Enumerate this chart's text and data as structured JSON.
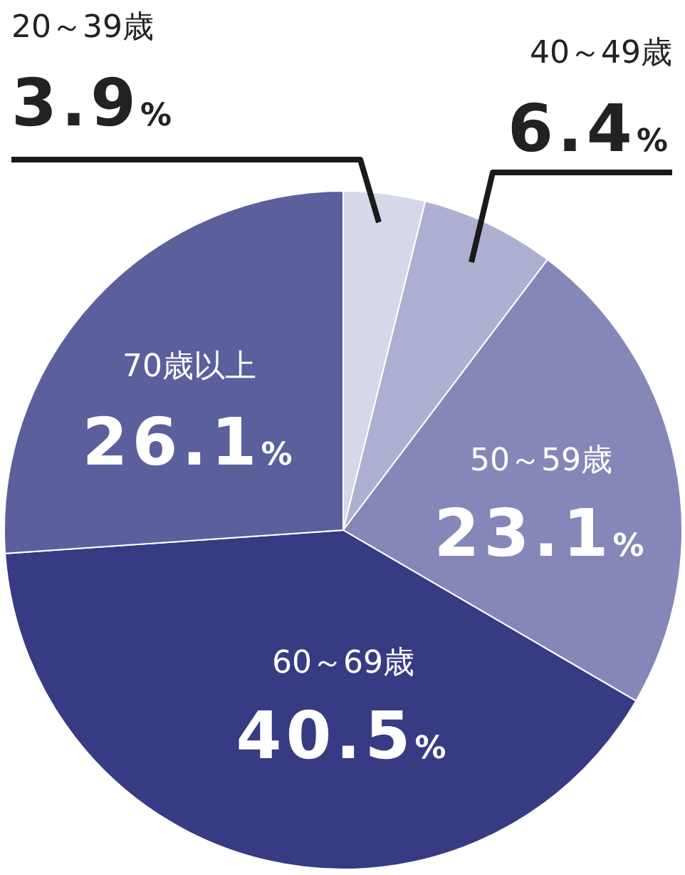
{
  "chart_data": {
    "type": "pie",
    "categories": [
      "20～39歳",
      "40～49歳",
      "50～59歳",
      "60～69歳",
      "70歳以上"
    ],
    "values": [
      3.9,
      6.4,
      23.1,
      40.5,
      26.1
    ],
    "colors": [
      "#d6d7e9",
      "#aeb0d1",
      "#8587b8",
      "#363b83",
      "#5b5f9c"
    ],
    "value_labels": [
      "3.9%",
      "6.4%",
      "23.1%",
      "40.5%",
      "26.1%"
    ]
  }
}
